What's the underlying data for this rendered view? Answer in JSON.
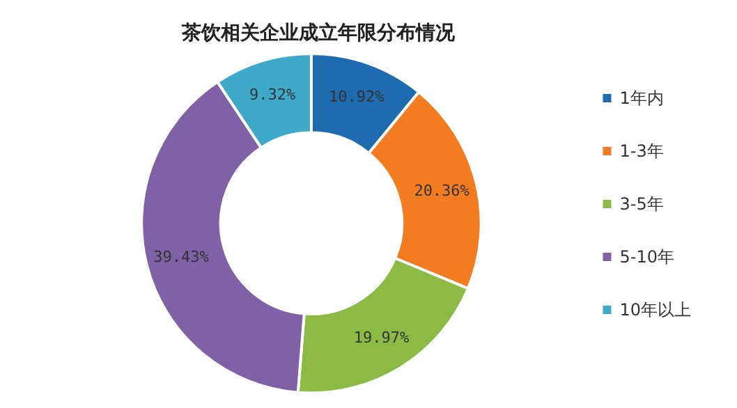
{
  "chart_data": {
    "type": "donut",
    "title": "茶饮相关企业成立年限分布情况",
    "categories": [
      "1年内",
      "1-3年",
      "3-5年",
      "5-10年",
      "10年以上"
    ],
    "values": [
      10.92,
      20.36,
      19.97,
      39.43,
      9.32
    ],
    "colors": [
      "#1f6bb0",
      "#f47c20",
      "#8cbb45",
      "#7f62a6",
      "#3ea9c8"
    ],
    "value_labels": [
      "10.92%",
      "20.36%",
      "19.97%",
      "39.43%",
      "9.32%"
    ],
    "legend": "right"
  }
}
